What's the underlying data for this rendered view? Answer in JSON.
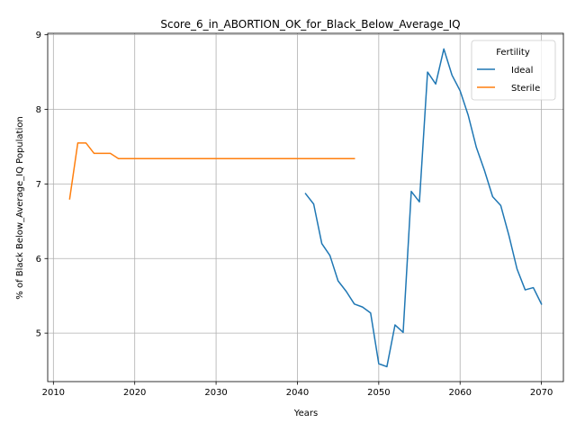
{
  "chart_data": {
    "type": "line",
    "title": "Score_6_in_ABORTION_OK_for_Black_Below_Average_IQ",
    "xlabel": "Years",
    "ylabel": "% of Black Below_Average_IQ Population",
    "xlim": [
      2009.3,
      2072.7
    ],
    "ylim": [
      4.35,
      9.02
    ],
    "xticks": [
      2010,
      2020,
      2030,
      2040,
      2050,
      2060,
      2070
    ],
    "yticks": [
      5,
      6,
      7,
      8,
      9
    ],
    "grid": true,
    "legend": {
      "title": "Fertility",
      "placement": "top-right"
    },
    "series": [
      {
        "name": "Ideal",
        "color": "#1f77b4",
        "x": [
          2041,
          2042,
          2043,
          2044,
          2045,
          2046,
          2047,
          2048,
          2049,
          2050,
          2051,
          2052,
          2053,
          2054,
          2055,
          2056,
          2057,
          2058,
          2059,
          2060,
          2061,
          2062,
          2063,
          2064,
          2065,
          2066,
          2067,
          2068,
          2069,
          2070
        ],
        "y": [
          6.87,
          6.73,
          6.2,
          6.04,
          5.7,
          5.56,
          5.39,
          5.35,
          5.27,
          4.59,
          4.55,
          5.11,
          5.01,
          6.9,
          6.76,
          8.5,
          8.34,
          8.81,
          8.46,
          8.25,
          7.92,
          7.49,
          7.18,
          6.83,
          6.71,
          6.31,
          5.86,
          5.58,
          5.61,
          5.39
        ]
      },
      {
        "name": "Sterile",
        "color": "#ff7f0e",
        "x": [
          2012,
          2013,
          2014,
          2015,
          2016,
          2017,
          2018,
          2019,
          2020,
          2021,
          2022,
          2023,
          2024,
          2025,
          2026,
          2027,
          2028,
          2029,
          2030,
          2031,
          2032,
          2033,
          2034,
          2035,
          2036,
          2037,
          2038,
          2039,
          2040,
          2041,
          2042,
          2043,
          2044,
          2045,
          2046,
          2047
        ],
        "y": [
          6.8,
          7.55,
          7.55,
          7.41,
          7.41,
          7.41,
          7.34,
          7.34,
          7.34,
          7.34,
          7.34,
          7.34,
          7.34,
          7.34,
          7.34,
          7.34,
          7.34,
          7.34,
          7.34,
          7.34,
          7.34,
          7.34,
          7.34,
          7.34,
          7.34,
          7.34,
          7.34,
          7.34,
          7.34,
          7.34,
          7.34,
          7.34,
          7.34,
          7.34,
          7.34,
          7.34
        ]
      }
    ]
  }
}
